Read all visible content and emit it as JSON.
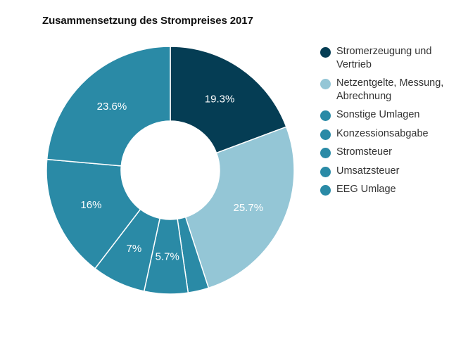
{
  "chart_data": {
    "type": "pie",
    "title": "Zusammensetzung des Strompreises 2017",
    "legend_position": "right",
    "donut": true,
    "colors": {
      "dark": "#053d54",
      "light": "#94c6d6",
      "mid": "#2a8aa6",
      "separator": "#ffffff"
    },
    "slices": [
      {
        "name": "Stromerzeugung und Vertrieb",
        "value": 19.3,
        "label": "19.3%",
        "color": "#053d54"
      },
      {
        "name": "Netzentgelte, Messung, Abrechnung",
        "value": 25.7,
        "label": "25.7%",
        "color": "#94c6d6"
      },
      {
        "name": "Sonstige Umlagen",
        "value": 2.7,
        "label": "",
        "color": "#2a8aa6"
      },
      {
        "name": "Konzessionsabgabe",
        "value": 5.7,
        "label": "5.7%",
        "color": "#2a8aa6"
      },
      {
        "name": "Stromsteuer",
        "value": 7,
        "label": "7%",
        "color": "#2a8aa6"
      },
      {
        "name": "Umsatzsteuer",
        "value": 16,
        "label": "16%",
        "color": "#2a8aa6"
      },
      {
        "name": "EEG Umlage",
        "value": 23.6,
        "label": "23.6%",
        "color": "#2a8aa6"
      }
    ]
  }
}
